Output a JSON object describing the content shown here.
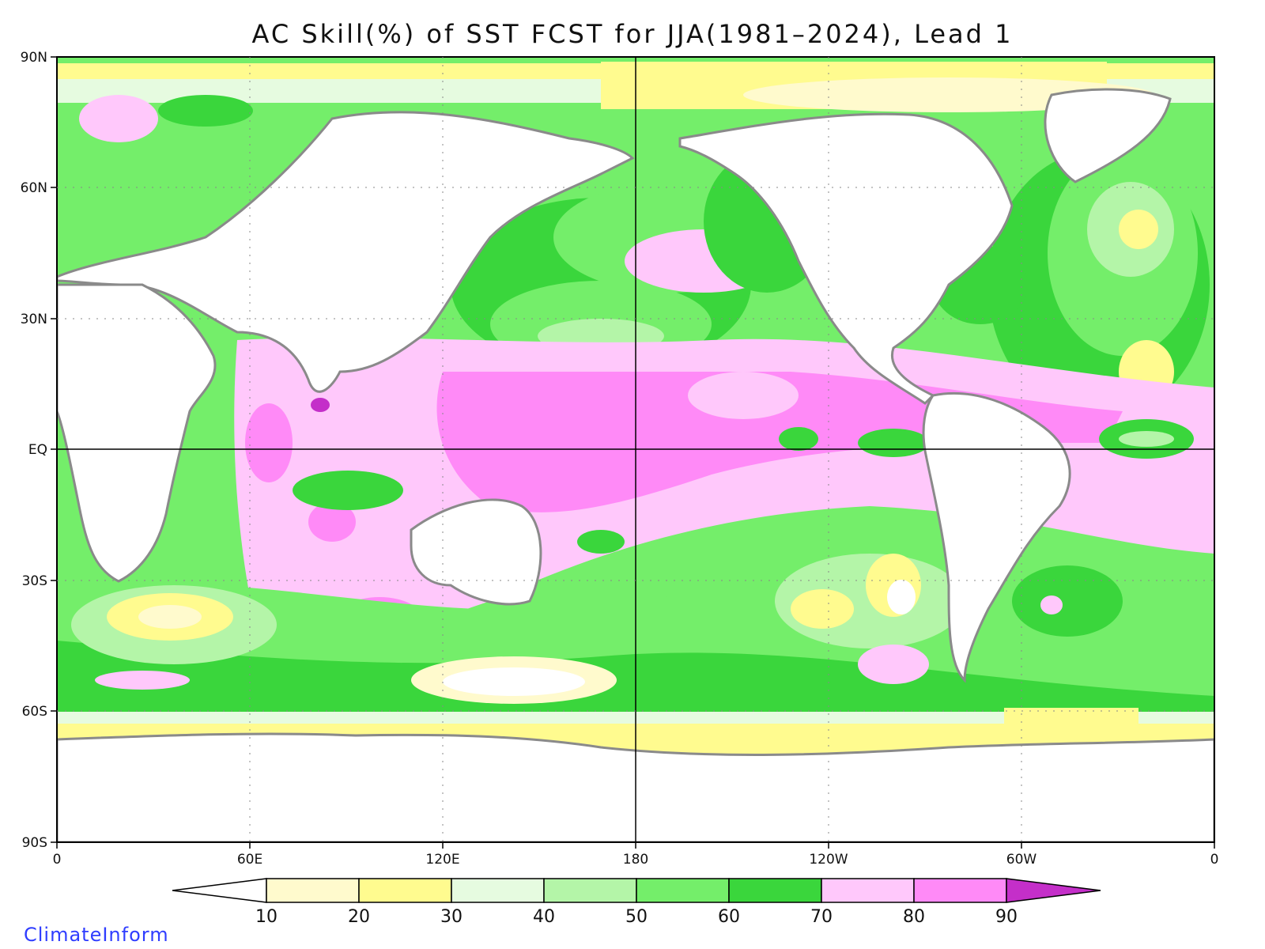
{
  "title": "AC Skill(%) of SST FCST for JJA(1981–2024), Lead 1",
  "brand": "ClimateInform",
  "lat_labels": [
    "90N",
    "60N",
    "30N",
    "EQ",
    "30S",
    "60S",
    "90S"
  ],
  "lon_labels": [
    "0",
    "60E",
    "120E",
    "180",
    "120W",
    "60W",
    "0"
  ],
  "colorbar": {
    "ticks": [
      "10",
      "20",
      "30",
      "40",
      "50",
      "60",
      "70",
      "80",
      "90"
    ],
    "colors": [
      "#ffffff",
      "#fffacd",
      "#fffb8f",
      "#e6fbe0",
      "#b4f5a8",
      "#74ee6a",
      "#3ad63c",
      "#ffc8fb",
      "#ff8af7",
      "#c42fc9"
    ]
  },
  "map_colors": {
    "land": "#ffffff",
    "coast": "#8a8a8a",
    "lakes": "#000000"
  }
}
